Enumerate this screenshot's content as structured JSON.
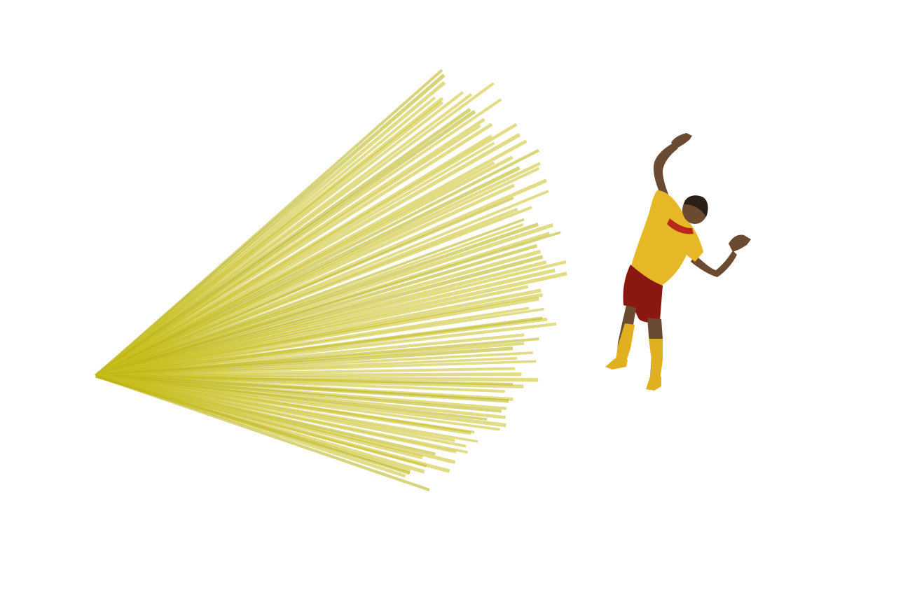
{
  "scene": {
    "background_color": "#ffffff",
    "ray_color": "#c8c020",
    "ray_highlight_color": "#b8b010",
    "ray_opacity": 0.55,
    "ray_count": 92,
    "subject": {
      "shirt_color": "#e6b828",
      "shirt_accent_color": "#b82818",
      "shorts_color": "#8a1810",
      "socks_color": "#e0b020",
      "skin_color": "#6b4a32",
      "hair_color": "#2a1e16"
    }
  }
}
